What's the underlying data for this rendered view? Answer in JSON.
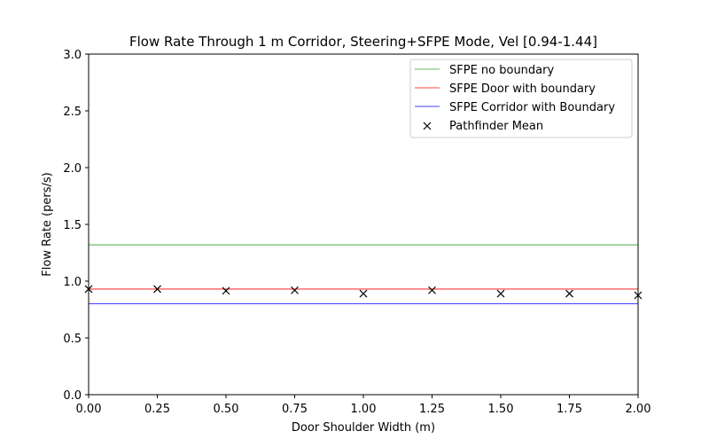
{
  "chart_data": {
    "type": "line",
    "title": "Flow Rate Through 1 m Corridor, Steering+SFPE Mode, Vel [0.94-1.44]",
    "xlabel": "Door Shoulder Width (m)",
    "ylabel": "Flow Rate (pers/s)",
    "xlim": [
      0,
      2.0
    ],
    "ylim": [
      0,
      3.0
    ],
    "xticks": [
      "0.00",
      "0.25",
      "0.50",
      "0.75",
      "1.00",
      "1.25",
      "1.50",
      "1.75",
      "2.00"
    ],
    "yticks": [
      "0.0",
      "0.5",
      "1.0",
      "1.5",
      "2.0",
      "2.5",
      "3.0"
    ],
    "grid": false,
    "legend_position": "top-right",
    "series": [
      {
        "name": "SFPE no boundary",
        "kind": "hline",
        "value": 1.32,
        "color": "#2ca02c"
      },
      {
        "name": "SFPE Door with boundary",
        "kind": "hline",
        "value": 0.93,
        "color": "#ff0000"
      },
      {
        "name": "SFPE Corridor with Boundary",
        "kind": "hline",
        "value": 0.8,
        "color": "#0000ff"
      },
      {
        "name": "Pathfinder Mean",
        "kind": "scatter",
        "marker": "x",
        "color": "#000000",
        "x": [
          0,
          0.25,
          0.5,
          0.75,
          1.0,
          1.25,
          1.5,
          1.75,
          2.0
        ],
        "y": [
          0.93,
          0.93,
          0.915,
          0.92,
          0.89,
          0.92,
          0.89,
          0.89,
          0.875
        ]
      }
    ]
  }
}
